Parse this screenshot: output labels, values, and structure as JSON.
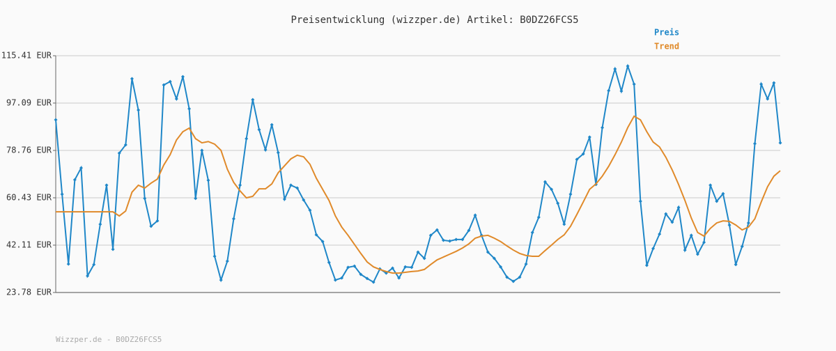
{
  "chart_data": {
    "type": "line",
    "title": "Preisentwicklung (wizzper.de) Artikel: B0DZ26FCS5",
    "footer": "Wizzper.de - B0DZ26FCS5",
    "categories": [
      null,
      null,
      null,
      null,
      null,
      null,
      null,
      null,
      null,
      null,
      null,
      null,
      null,
      null,
      null,
      null,
      null,
      null,
      null,
      null,
      null,
      null,
      null,
      null,
      null,
      null,
      null,
      null,
      null,
      null,
      null,
      null,
      null,
      null,
      null,
      null,
      null,
      null,
      null,
      null,
      null,
      null,
      null,
      null,
      null,
      null,
      null,
      null,
      null,
      null,
      null,
      null,
      null,
      null,
      null,
      null,
      null,
      null,
      null,
      null,
      null,
      null,
      null,
      null,
      null,
      null,
      null,
      null,
      null,
      null,
      null,
      null,
      null,
      null,
      null,
      null,
      null,
      null,
      null,
      null,
      null,
      null,
      null,
      null,
      null,
      null,
      null,
      null,
      null,
      null,
      null,
      null,
      null,
      null,
      null,
      null,
      null,
      null,
      null,
      null,
      null,
      null,
      null,
      null,
      null,
      null,
      null,
      null,
      null,
      null,
      null,
      null,
      null,
      null,
      null
    ],
    "series": [
      {
        "name": "Preis",
        "color": "#1f87c8",
        "markers": true,
        "values": [
          90.6,
          61.8,
          34.8,
          67.4,
          72.0,
          30.2,
          34.6,
          50.2,
          65.3,
          40.5,
          77.7,
          80.9,
          106.5,
          94.4,
          60.2,
          49.4,
          51.5,
          104.1,
          105.4,
          98.7,
          107.3,
          94.9,
          60.2,
          78.8,
          67.2,
          37.8,
          28.6,
          35.9,
          52.3,
          65.3,
          83.3,
          98.4,
          86.8,
          79.0,
          88.7,
          77.9,
          59.9,
          65.3,
          64.2,
          59.6,
          55.6,
          46.1,
          43.5,
          35.4,
          28.6,
          29.4,
          33.5,
          34.0,
          30.8,
          29.2,
          27.8,
          32.9,
          31.3,
          33.2,
          29.4,
          33.7,
          33.5,
          39.4,
          37.0,
          45.9,
          48.0,
          44.0,
          43.7,
          44.3,
          44.3,
          47.8,
          53.7,
          45.9,
          39.4,
          37.0,
          33.7,
          29.7,
          28.1,
          29.7,
          34.8,
          47.0,
          52.9,
          66.6,
          63.7,
          58.3,
          50.2,
          61.8,
          75.3,
          77.4,
          83.9,
          65.6,
          87.6,
          101.9,
          110.3,
          101.7,
          111.4,
          104.4,
          59.1,
          34.3,
          40.8,
          46.4,
          54.2,
          51.0,
          56.7,
          40.2,
          45.9,
          38.6,
          43.2,
          65.3,
          59.1,
          62.0,
          49.9,
          34.6,
          41.6,
          50.7,
          81.4,
          104.4,
          98.7,
          104.9,
          81.7
        ]
      },
      {
        "name": "Trend",
        "color": "#e08a2a",
        "markers": false,
        "values": [
          55.0,
          55.0,
          55.0,
          55.0,
          55.0,
          55.0,
          55.0,
          55.0,
          55.0,
          55.0,
          53.4,
          55.3,
          62.6,
          65.3,
          64.2,
          66.1,
          67.7,
          73.1,
          77.1,
          82.8,
          86.0,
          87.4,
          83.3,
          81.7,
          82.2,
          81.2,
          78.8,
          71.5,
          66.4,
          63.1,
          60.4,
          61.0,
          63.9,
          63.9,
          65.8,
          70.1,
          72.8,
          75.5,
          76.9,
          76.3,
          73.4,
          68.0,
          63.7,
          59.4,
          53.4,
          49.1,
          45.9,
          42.4,
          38.9,
          35.6,
          33.7,
          32.7,
          31.9,
          31.3,
          31.3,
          31.6,
          31.9,
          32.1,
          32.7,
          34.6,
          36.4,
          37.5,
          38.6,
          39.7,
          41.0,
          42.6,
          44.8,
          45.6,
          45.9,
          44.8,
          43.5,
          41.8,
          40.2,
          38.9,
          38.1,
          37.8,
          37.8,
          40.0,
          42.1,
          44.3,
          46.1,
          49.4,
          54.0,
          58.8,
          63.7,
          65.8,
          68.8,
          72.6,
          77.1,
          82.0,
          87.6,
          92.0,
          90.6,
          86.0,
          82.0,
          80.1,
          76.1,
          71.2,
          65.6,
          59.4,
          52.6,
          47.0,
          45.6,
          48.6,
          50.7,
          51.5,
          51.3,
          49.9,
          48.0,
          49.1,
          52.3,
          58.8,
          64.7,
          68.8,
          70.9
        ]
      }
    ],
    "ylim": [
      23.78,
      115.41
    ],
    "yticks": [
      {
        "value": 23.78,
        "label": "23.78 EUR"
      },
      {
        "value": 42.11,
        "label": "42.11 EUR"
      },
      {
        "value": 60.43,
        "label": "60.43 EUR"
      },
      {
        "value": 78.76,
        "label": "78.76 EUR"
      },
      {
        "value": 97.09,
        "label": "97.09 EUR"
      },
      {
        "value": 115.41,
        "label": "115.41 EUR"
      }
    ],
    "grid": true,
    "legend": "top-right"
  }
}
